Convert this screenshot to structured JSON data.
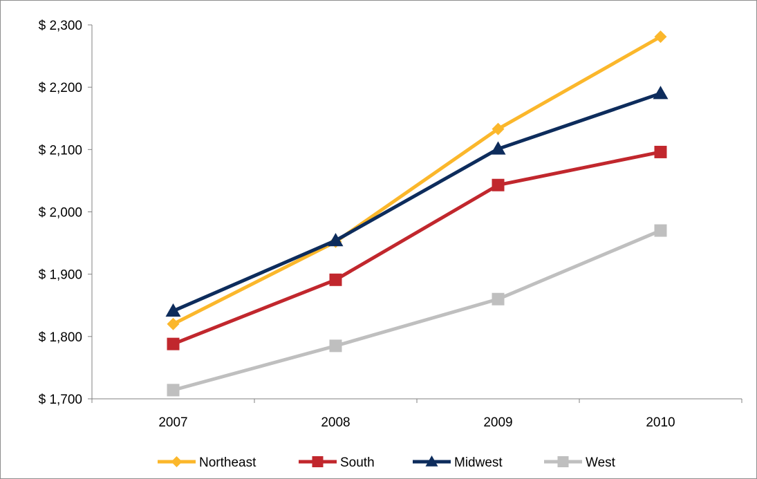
{
  "chart_data": {
    "type": "line",
    "title": "",
    "xlabel": "",
    "ylabel": "",
    "categories": [
      "2007",
      "2008",
      "2009",
      "2010"
    ],
    "ylim": [
      1700,
      2300
    ],
    "yticks": [
      1700,
      1800,
      1900,
      2000,
      2100,
      2200,
      2300
    ],
    "ytick_labels": [
      "$ 1,700",
      "$ 1,800",
      "$ 1,900",
      "$ 2,000",
      "$ 2,100",
      "$ 2,200",
      "$ 2,300"
    ],
    "grid": false,
    "legend_position": "bottom",
    "series": [
      {
        "name": "Northeast",
        "values": [
          1820,
          1952,
          2133,
          2281
        ],
        "color": "#FBB72B",
        "marker": "diamond"
      },
      {
        "name": "South",
        "values": [
          1788,
          1891,
          2043,
          2096
        ],
        "color": "#C1272D",
        "marker": "square"
      },
      {
        "name": "Midwest",
        "values": [
          1841,
          1954,
          2101,
          2190
        ],
        "color": "#0D2C5C",
        "marker": "triangle"
      },
      {
        "name": "West",
        "values": [
          1714,
          1785,
          1860,
          1970
        ],
        "color": "#BFBFBF",
        "marker": "square"
      }
    ]
  }
}
